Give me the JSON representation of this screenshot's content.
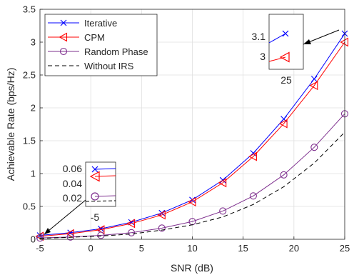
{
  "chart_data": {
    "type": "line",
    "xlabel": "SNR (dB)",
    "ylabel": "Achievable Rate (bps/Hz)",
    "xlim": [
      -5,
      25
    ],
    "ylim": [
      0,
      3.5
    ],
    "xticks": [
      -5,
      0,
      5,
      10,
      15,
      20,
      25
    ],
    "yticks": [
      0,
      0.5,
      1,
      1.5,
      2,
      2.5,
      3,
      3.5
    ],
    "grid": true,
    "legend_position": "top-left",
    "x": [
      -5,
      -2,
      1,
      4,
      7,
      10,
      13,
      16,
      19,
      22,
      25
    ],
    "series": [
      {
        "name": "Iterative",
        "color": "#0000ff",
        "marker": "x",
        "dash": "solid",
        "values": [
          0.06,
          0.1,
          0.16,
          0.26,
          0.4,
          0.6,
          0.9,
          1.31,
          1.83,
          2.44,
          3.13
        ]
      },
      {
        "name": "CPM",
        "color": "#ff0000",
        "marker": "triangle-left",
        "dash": "solid",
        "values": [
          0.045,
          0.085,
          0.145,
          0.24,
          0.37,
          0.57,
          0.86,
          1.26,
          1.76,
          2.34,
          3.0
        ]
      },
      {
        "name": "Random Phase",
        "color": "#7e2f8e",
        "marker": "circle",
        "dash": "solid",
        "values": [
          0.02,
          0.035,
          0.06,
          0.1,
          0.17,
          0.27,
          0.43,
          0.66,
          0.98,
          1.4,
          1.91
        ]
      },
      {
        "name": "Without IRS",
        "color": "#000000",
        "marker": "none",
        "dash": "dashed",
        "values": [
          0.015,
          0.03,
          0.05,
          0.08,
          0.14,
          0.22,
          0.34,
          0.53,
          0.8,
          1.16,
          1.63
        ]
      }
    ],
    "insets": [
      {
        "id": "inset-right",
        "x_tick": "25",
        "y_ticks": [
          "3.1",
          "3"
        ]
      },
      {
        "id": "inset-left",
        "x_tick": "-5",
        "y_ticks": [
          "0.06",
          "0.04",
          "0.02"
        ]
      }
    ]
  }
}
